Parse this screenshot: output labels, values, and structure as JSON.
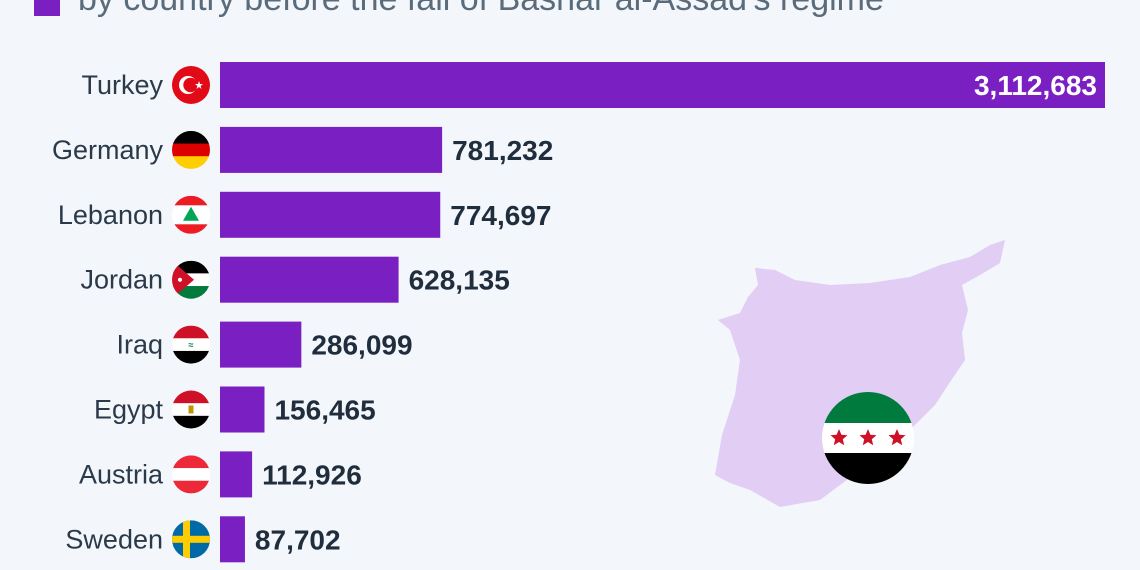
{
  "header": {
    "subtitle": "by country before the fall of Bashar al-Assad's regime"
  },
  "colors": {
    "bar": "#7a1fc2",
    "map_fill": "#e2cdf5",
    "background": "#f3f6fa"
  },
  "map": {
    "flag_icon": "syrian-opposition-flag-icon"
  },
  "chart_data": {
    "type": "bar",
    "orientation": "horizontal",
    "categories": [
      "Turkey",
      "Germany",
      "Lebanon",
      "Jordan",
      "Iraq",
      "Egypt",
      "Austria",
      "Sweden"
    ],
    "values": [
      3112683,
      781232,
      774697,
      628135,
      286099,
      156465,
      112926,
      87702
    ],
    "value_labels": [
      "3,112,683",
      "781,232",
      "774,697",
      "628,135",
      "286,099",
      "156,465",
      "112,926",
      "87,702"
    ],
    "flag_icons": [
      "turkey-flag-icon",
      "germany-flag-icon",
      "lebanon-flag-icon",
      "jordan-flag-icon",
      "iraq-flag-icon",
      "egypt-flag-icon",
      "austria-flag-icon",
      "sweden-flag-icon"
    ],
    "xlim": [
      0,
      3112683
    ],
    "grid": false
  }
}
